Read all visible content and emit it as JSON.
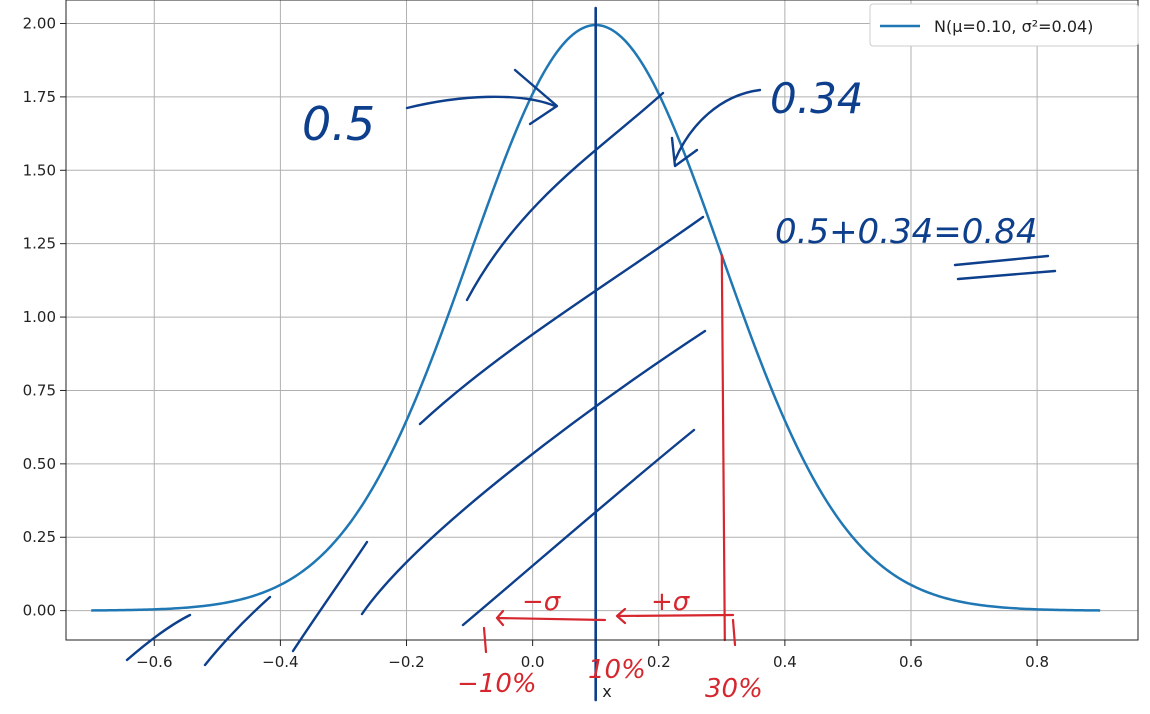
{
  "chart_data": {
    "type": "line",
    "title": "",
    "xlabel": "x",
    "ylabel": "",
    "xlim": [
      -0.74,
      0.96
    ],
    "ylim": [
      -0.1,
      2.08
    ],
    "xticks": [
      -0.6,
      -0.4,
      -0.2,
      0.0,
      0.2,
      0.4,
      0.6,
      0.8
    ],
    "xtick_labels": [
      "−0.6",
      "−0.4",
      "−0.2",
      "0.0",
      "0.2",
      "0.4",
      "0.6",
      "0.8"
    ],
    "yticks": [
      0.0,
      0.25,
      0.5,
      0.75,
      1.0,
      1.25,
      1.5,
      1.75,
      2.0
    ],
    "ytick_labels": [
      "0.00",
      "0.25",
      "0.50",
      "0.75",
      "1.00",
      "1.25",
      "1.50",
      "1.75",
      "2.00"
    ],
    "grid": true,
    "legend": "top-right",
    "series": [
      {
        "name": "N(μ=0.10, σ²=0.04)",
        "distribution": "normal",
        "mu": 0.1,
        "sigma": 0.2,
        "x_range": [
          -0.7,
          0.9
        ],
        "color": "#1f77b4"
      }
    ],
    "vertical_lines": [
      {
        "x": 0.1,
        "color": "#0d3f8c"
      },
      {
        "x": 0.3,
        "color": "#d6272f"
      }
    ],
    "annotations": {
      "left_area": "0.5",
      "right_area": "0.34",
      "sum": "0.5+0.34=0.84",
      "minus_sigma": "−σ",
      "plus_sigma": "+σ",
      "pct_low": "−10%",
      "pct_mid": "10%",
      "pct_high": "30%"
    }
  }
}
